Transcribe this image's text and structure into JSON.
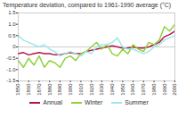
{
  "chart_data": {
    "type": "line",
    "title": "Temperature deviation, compared to 1961-1990 average (°C)",
    "x": [
      1850,
      1855,
      1860,
      1865,
      1870,
      1875,
      1880,
      1885,
      1890,
      1895,
      1900,
      1905,
      1910,
      1915,
      1920,
      1925,
      1930,
      1935,
      1940,
      1945,
      1950,
      1955,
      1960,
      1965,
      1970,
      1975,
      1980,
      1985,
      1990,
      1995,
      2000
    ],
    "series": [
      {
        "name": "Annual",
        "color": "#b8124a",
        "values": [
          -0.3,
          -0.25,
          -0.35,
          -0.3,
          -0.25,
          -0.3,
          -0.3,
          -0.35,
          -0.35,
          -0.3,
          -0.25,
          -0.3,
          -0.3,
          -0.2,
          -0.15,
          -0.1,
          -0.05,
          0.0,
          0.05,
          0.0,
          -0.05,
          -0.05,
          0.0,
          -0.05,
          -0.05,
          0.0,
          0.1,
          0.2,
          0.45,
          0.55,
          0.7
        ]
      },
      {
        "name": "Winter",
        "color": "#8fd13f",
        "values": [
          -0.6,
          -0.9,
          -0.5,
          -0.8,
          -0.4,
          -0.9,
          -0.6,
          -0.7,
          -0.9,
          -0.5,
          -0.4,
          -0.6,
          -0.3,
          -0.2,
          0.0,
          0.2,
          -0.1,
          0.1,
          -0.3,
          -0.4,
          -0.1,
          -0.3,
          0.1,
          -0.1,
          -0.2,
          0.2,
          0.1,
          0.3,
          0.9,
          0.7,
          1.0
        ]
      },
      {
        "name": "Summer",
        "color": "#9ee8e8",
        "values": [
          0.5,
          0.3,
          0.2,
          0.1,
          0.0,
          0.1,
          -0.1,
          -0.2,
          -0.4,
          -0.3,
          -0.2,
          -0.3,
          -0.4,
          -0.2,
          -0.3,
          0.0,
          0.1,
          0.1,
          0.2,
          0.4,
          0.0,
          -0.1,
          -0.1,
          -0.2,
          -0.3,
          -0.2,
          0.0,
          0.1,
          0.3,
          0.4,
          0.5
        ]
      }
    ],
    "xlim": [
      1850,
      2000
    ],
    "xticks": [
      1850,
      1860,
      1870,
      1880,
      1890,
      1900,
      1910,
      1920,
      1930,
      1940,
      1950,
      1960,
      1970,
      1980,
      1990,
      2000
    ],
    "ylim": [
      -1.5,
      1.5
    ],
    "yticks": [
      {
        "value": -1.5,
        "label": "-1.5"
      },
      {
        "value": -1,
        "label": "-1.0"
      },
      {
        "value": -0.5,
        "label": "-0.5"
      },
      0,
      {
        "value": 0.5,
        "label": "0.5"
      },
      {
        "value": 1,
        "label": "1.0"
      },
      {
        "value": 1.5,
        "label": "1.5"
      }
    ],
    "legend": "bottom",
    "grid": false
  }
}
